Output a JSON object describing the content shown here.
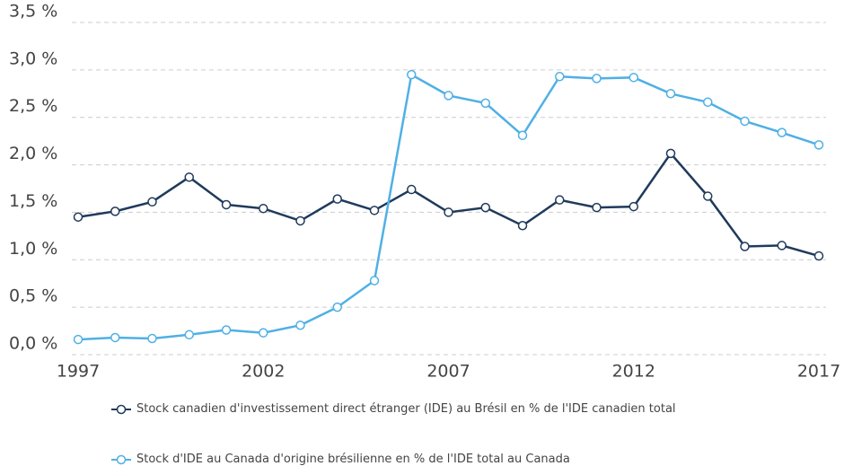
{
  "chart_data": {
    "type": "line",
    "x": [
      1997,
      1998,
      1999,
      2000,
      2001,
      2002,
      2003,
      2004,
      2005,
      2006,
      2007,
      2008,
      2009,
      2010,
      2011,
      2012,
      2013,
      2014,
      2015,
      2016,
      2017
    ],
    "series": [
      {
        "name": "Stock canadien d'investissement direct étranger (IDE) au Brésil en % de l'IDE canadien total",
        "color": "#1f3a5c",
        "values": [
          1.45,
          1.51,
          1.61,
          1.87,
          1.58,
          1.54,
          1.41,
          1.64,
          1.52,
          1.74,
          1.5,
          1.55,
          1.36,
          1.63,
          1.55,
          1.56,
          2.12,
          1.67,
          1.14,
          1.15,
          1.04
        ]
      },
      {
        "name": "Stock d'IDE au Canada d'origine brésilienne en % de l'IDE total au Canada",
        "color": "#4fb0e5",
        "values": [
          0.16,
          0.18,
          0.17,
          0.21,
          0.26,
          0.23,
          0.31,
          0.5,
          0.78,
          2.95,
          2.73,
          2.65,
          2.31,
          2.93,
          2.91,
          2.92,
          2.75,
          2.66,
          2.46,
          2.34,
          2.21
        ]
      }
    ],
    "xlim": [
      1997,
      2017
    ],
    "xticks": [
      1997,
      2002,
      2007,
      2012,
      2017
    ],
    "ylim": [
      0,
      3.5
    ],
    "yticks": [
      {
        "value": 0,
        "label": "0,0 %"
      },
      {
        "value": 0.5,
        "label": "0,5 %"
      },
      {
        "value": 1,
        "label": "1,0 %"
      },
      {
        "value": 1.5,
        "label": "1,5 %"
      },
      {
        "value": 2,
        "label": "2,0 %"
      },
      {
        "value": 2.5,
        "label": "2,5 %"
      },
      {
        "value": 3,
        "label": "3,0 %"
      },
      {
        "value": 3.5,
        "label": "3,5 %"
      }
    ],
    "grid": true,
    "legend": "bottom"
  }
}
